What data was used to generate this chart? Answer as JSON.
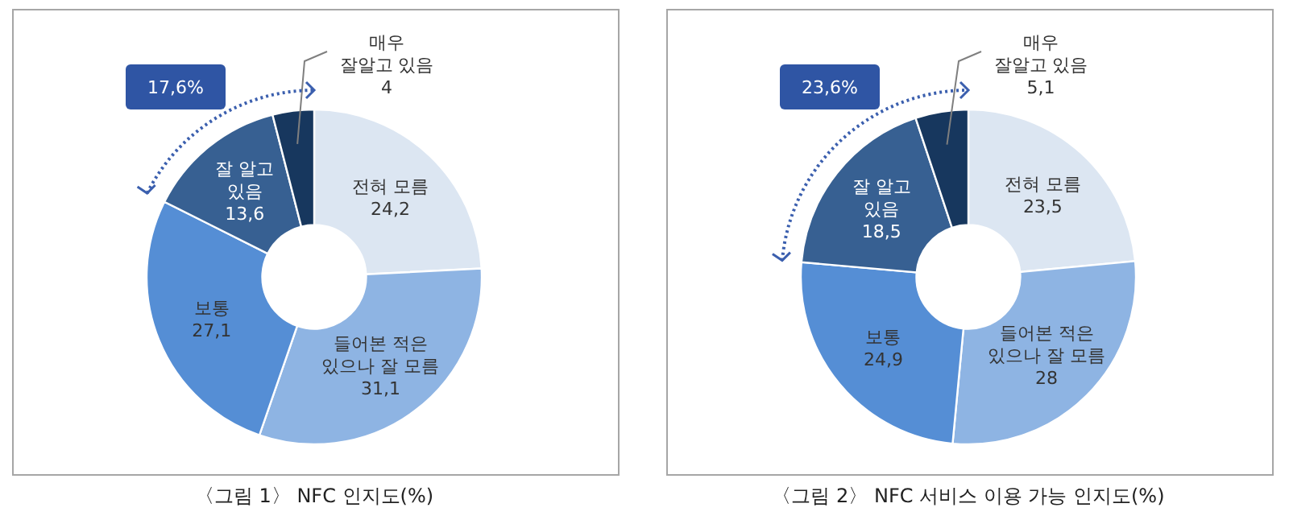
{
  "chart_data": [
    {
      "type": "donut",
      "title": "〈그림 1〉 NFC 인지도(%)",
      "categories": [
        "전혀 모름",
        "들어본 적은\n있으나 잘 모름",
        "보통",
        "잘 알고\n있음",
        "매우\n잘알고 있음"
      ],
      "values": [
        24.2,
        31.1,
        27.1,
        13.6,
        4
      ],
      "value_labels": [
        "24,2",
        "31,1",
        "27,1",
        "13,6",
        "4"
      ],
      "colors": [
        "#dce6f2",
        "#8eb4e3",
        "#558ed5",
        "#376092",
        "#17375e"
      ],
      "annotations": [
        "17,6%"
      ]
    },
    {
      "type": "donut",
      "title": "〈그림 2〉 NFC 서비스 이용 가능 인지도(%)",
      "categories": [
        "전혀 모름",
        "들어본 적은\n있으나 잘 모름",
        "보통",
        "잘 알고\n있음",
        "매우\n잘알고 있음"
      ],
      "values": [
        23.5,
        28,
        24.9,
        18.5,
        5.1
      ],
      "value_labels": [
        "23,5",
        "28",
        "24,9",
        "18,5",
        "5,1"
      ],
      "colors": [
        "#dce6f2",
        "#8eb4e3",
        "#558ed5",
        "#376092",
        "#17375e"
      ],
      "annotations": [
        "23,6%"
      ]
    }
  ]
}
